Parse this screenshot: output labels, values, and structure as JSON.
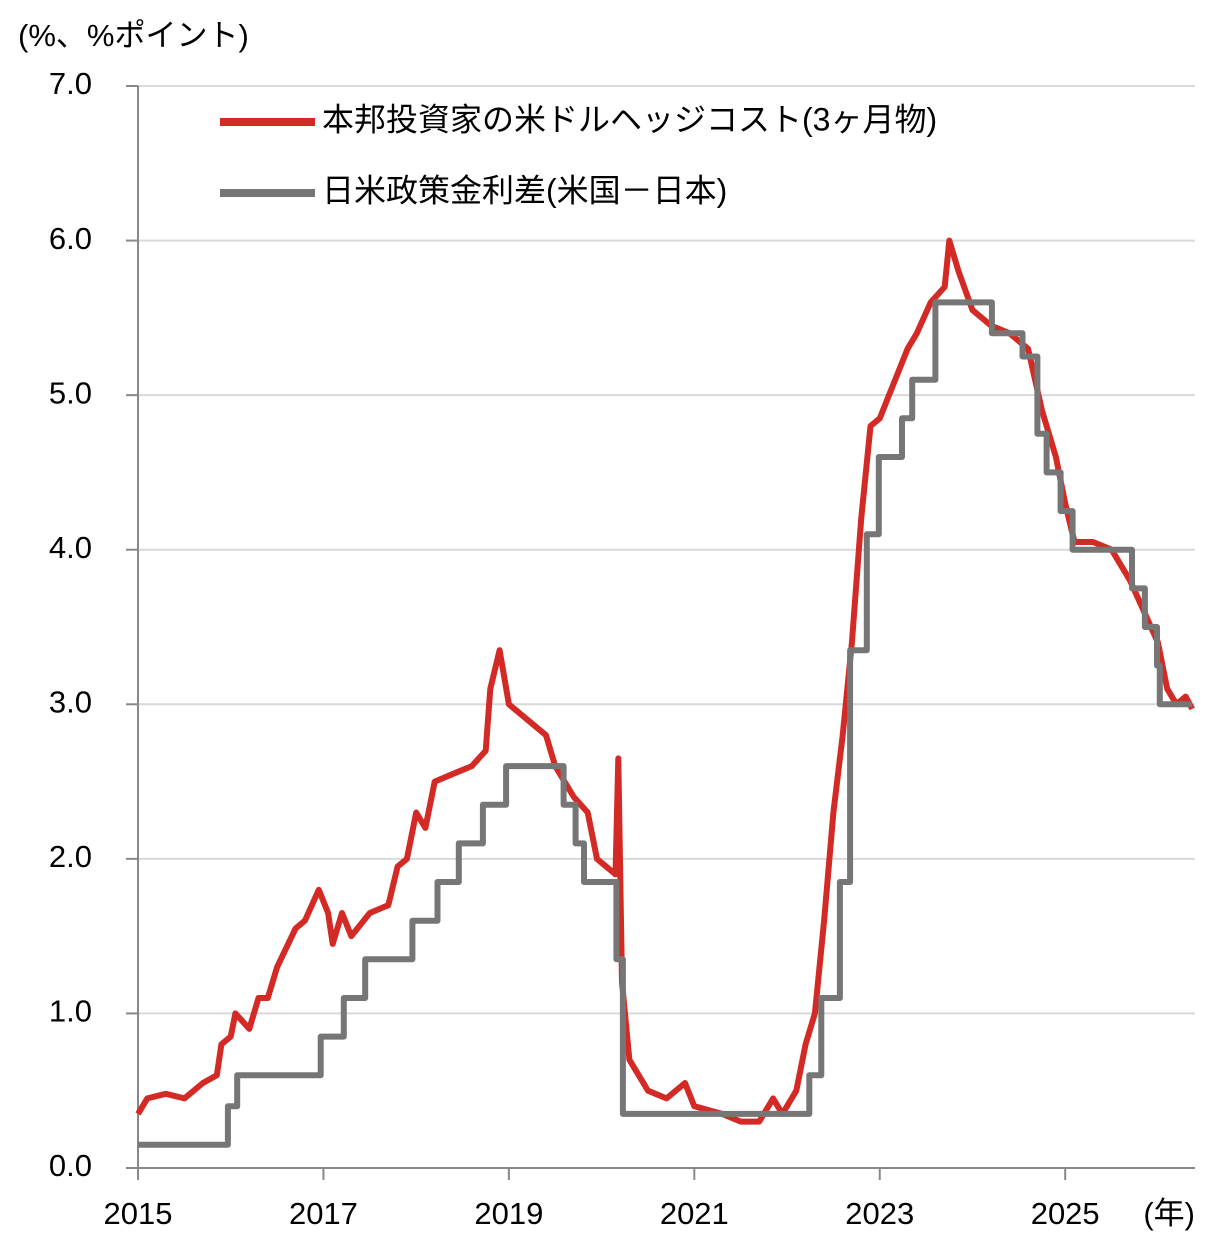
{
  "chart_data": {
    "type": "line",
    "y_label": "(%、%ポイント)",
    "x_label": "(年)",
    "xlim": [
      2015,
      2026.4
    ],
    "ylim": [
      0,
      7
    ],
    "xticks": [
      2015,
      2017,
      2019,
      2021,
      2023,
      2025
    ],
    "yticks": [
      {
        "value": 0,
        "label": "0.0"
      },
      {
        "value": 1,
        "label": "1.0"
      },
      {
        "value": 2,
        "label": "2.0"
      },
      {
        "value": 3,
        "label": "3.0"
      },
      {
        "value": 4,
        "label": "4.0"
      },
      {
        "value": 5,
        "label": "5.0"
      },
      {
        "value": 6,
        "label": "6.0"
      },
      {
        "value": 7,
        "label": "7.0"
      }
    ],
    "grid": true,
    "legend": "upper left",
    "series": [
      {
        "name": "本邦投資家の米ドルヘッジコスト(3ヶ月物)",
        "color": "#d42a26",
        "x": [
          2015.0,
          2015.1,
          2015.3,
          2015.5,
          2015.7,
          2015.85,
          2015.9,
          2016.0,
          2016.05,
          2016.2,
          2016.3,
          2016.4,
          2016.5,
          2016.7,
          2016.8,
          2016.95,
          2017.05,
          2017.1,
          2017.2,
          2017.3,
          2017.5,
          2017.7,
          2017.8,
          2017.9,
          2018.0,
          2018.1,
          2018.2,
          2018.4,
          2018.6,
          2018.75,
          2018.8,
          2018.9,
          2019.0,
          2019.2,
          2019.4,
          2019.5,
          2019.7,
          2019.85,
          2019.95,
          2020.15,
          2020.18,
          2020.22,
          2020.3,
          2020.5,
          2020.7,
          2020.9,
          2021.0,
          2021.3,
          2021.5,
          2021.7,
          2021.85,
          2021.95,
          2022.1,
          2022.2,
          2022.3,
          2022.4,
          2022.5,
          2022.6,
          2022.7,
          2022.8,
          2022.9,
          2023.0,
          2023.1,
          2023.2,
          2023.3,
          2023.4,
          2023.55,
          2023.7,
          2023.75,
          2023.85,
          2024.0,
          2024.2,
          2024.4,
          2024.6,
          2024.75,
          2024.9,
          2025.0,
          2025.1,
          2025.3,
          2025.5,
          2025.7,
          2025.85,
          2026.0,
          2026.1,
          2026.2,
          2026.3,
          2026.37
        ],
        "values": [
          0.35,
          0.45,
          0.48,
          0.45,
          0.55,
          0.6,
          0.8,
          0.85,
          1.0,
          0.9,
          1.1,
          1.1,
          1.3,
          1.55,
          1.6,
          1.8,
          1.65,
          1.45,
          1.65,
          1.5,
          1.65,
          1.7,
          1.95,
          2.0,
          2.3,
          2.2,
          2.5,
          2.55,
          2.6,
          2.7,
          3.1,
          3.35,
          3.0,
          2.9,
          2.8,
          2.6,
          2.4,
          2.3,
          2.0,
          1.9,
          2.65,
          1.2,
          0.7,
          0.5,
          0.45,
          0.55,
          0.4,
          0.35,
          0.3,
          0.3,
          0.45,
          0.35,
          0.5,
          0.8,
          1.0,
          1.6,
          2.3,
          2.8,
          3.4,
          4.2,
          4.8,
          4.85,
          5.0,
          5.15,
          5.3,
          5.4,
          5.6,
          5.7,
          6.0,
          5.8,
          5.55,
          5.45,
          5.4,
          5.3,
          4.9,
          4.6,
          4.3,
          4.05,
          4.05,
          4.0,
          3.8,
          3.6,
          3.4,
          3.1,
          3.0,
          3.05,
          2.97
        ]
      },
      {
        "name": "日米政策金利差(米国－日本)",
        "color": "#767676",
        "x": [
          2015.0,
          2015.97,
          2015.97,
          2016.07,
          2016.07,
          2016.97,
          2016.97,
          2017.22,
          2017.22,
          2017.45,
          2017.45,
          2017.96,
          2017.96,
          2018.23,
          2018.23,
          2018.46,
          2018.46,
          2018.72,
          2018.72,
          2018.97,
          2018.97,
          2019.59,
          2019.59,
          2019.72,
          2019.72,
          2019.81,
          2019.81,
          2020.16,
          2020.16,
          2020.23,
          2020.23,
          2022.24,
          2022.24,
          2022.37,
          2022.37,
          2022.57,
          2022.57,
          2022.68,
          2022.68,
          2022.86,
          2022.86,
          2022.99,
          2022.99,
          2023.24,
          2023.24,
          2023.35,
          2023.35,
          2023.6,
          2023.6,
          2024.21,
          2024.21,
          2024.54,
          2024.54,
          2024.7,
          2024.7,
          2024.8,
          2024.8,
          2024.95,
          2024.95,
          2025.08,
          2025.08,
          2025.72,
          2025.72,
          2025.86,
          2025.86,
          2025.99,
          2025.99,
          2026.02,
          2026.02,
          2026.37
        ],
        "values": [
          0.15,
          0.15,
          0.4,
          0.4,
          0.6,
          0.6,
          0.85,
          0.85,
          1.1,
          1.1,
          1.35,
          1.35,
          1.6,
          1.6,
          1.85,
          1.85,
          2.1,
          2.1,
          2.35,
          2.35,
          2.6,
          2.6,
          2.35,
          2.35,
          2.1,
          2.1,
          1.85,
          1.85,
          1.35,
          1.35,
          0.35,
          0.35,
          0.6,
          0.6,
          1.1,
          1.1,
          1.85,
          1.85,
          3.35,
          3.35,
          4.1,
          4.1,
          4.6,
          4.6,
          4.85,
          4.85,
          5.1,
          5.1,
          5.6,
          5.6,
          5.4,
          5.4,
          5.25,
          5.25,
          4.75,
          4.75,
          4.5,
          4.5,
          4.25,
          4.25,
          4.0,
          4.0,
          3.75,
          3.75,
          3.5,
          3.5,
          3.25,
          3.25,
          3.0,
          3.0
        ]
      }
    ]
  }
}
